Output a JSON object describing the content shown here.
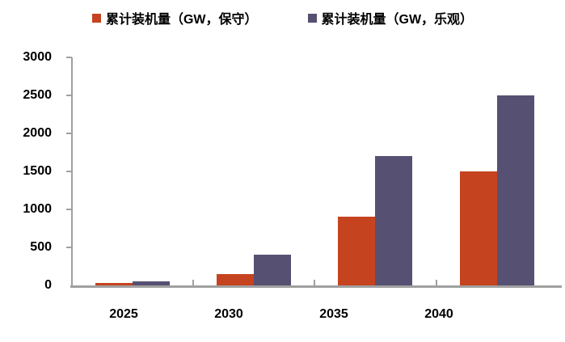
{
  "legend": {
    "items": [
      {
        "key": "conservative",
        "label": "累计装机量（GW，保守）",
        "color": "#C5431F"
      },
      {
        "key": "optimistic",
        "label": "累计装机量（GW，乐观）",
        "color": "#565073"
      }
    ]
  },
  "chart_data": {
    "type": "bar",
    "categories": [
      "2025",
      "2030",
      "2035",
      "2040"
    ],
    "series": [
      {
        "key": "conservative",
        "name": "累计装机量（GW，保守）",
        "color": "#C5431F",
        "values": [
          30,
          150,
          900,
          1500
        ]
      },
      {
        "key": "optimistic",
        "name": "累计装机量（GW，乐观）",
        "color": "#565073",
        "values": [
          50,
          400,
          1700,
          2500
        ]
      }
    ],
    "title": "",
    "xlabel": "",
    "ylabel": "",
    "ylim": [
      0,
      3000
    ],
    "yticks": [
      0,
      500,
      1000,
      1500,
      2000,
      2500,
      3000
    ],
    "grid": false,
    "legend_position": "top",
    "axis_color": "#A0A0A0",
    "label_color": "#000000",
    "background": "#FFFFFF"
  }
}
